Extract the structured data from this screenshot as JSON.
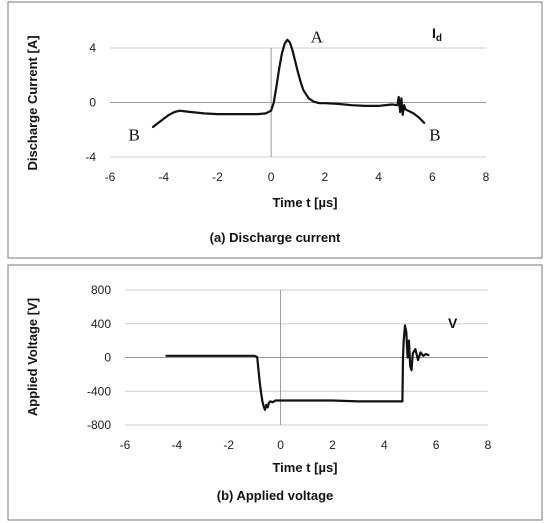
{
  "chart_data": [
    {
      "type": "line",
      "caption": "(a) Discharge current",
      "xlabel": "Time t [µs]",
      "ylabel": "Discharge Current [A]",
      "xlim": [
        -6,
        8
      ],
      "ylim": [
        -4,
        4
      ],
      "xticks": [
        "-6",
        "-4",
        "-2",
        "0",
        "2",
        "4",
        "6",
        "8"
      ],
      "yticks": [
        "4",
        "0",
        "-4"
      ],
      "ytick_values": [
        4,
        0,
        -4
      ],
      "grid": true,
      "series_label": "Id",
      "annotations": [
        {
          "text": "A",
          "x": 1.7,
          "y": 4.4
        },
        {
          "text": "B",
          "x": -5.1,
          "y": -2.8
        },
        {
          "text": "B",
          "x": 6.1,
          "y": -2.8
        }
      ],
      "series": [
        {
          "x": [
            -4.4,
            -4.2,
            -4.0,
            -3.8,
            -3.6,
            -3.4,
            -3.2,
            -3.0,
            -2.5,
            -2.0,
            -1.5,
            -1.0,
            -0.5,
            -0.2,
            0.0,
            0.1,
            0.2,
            0.3,
            0.4,
            0.5,
            0.6,
            0.7,
            0.8,
            0.9,
            1.0,
            1.1,
            1.2,
            1.4,
            1.6,
            1.8,
            2.0,
            2.5,
            3.0,
            3.5,
            4.0,
            4.5,
            4.7,
            4.75,
            4.8,
            4.85,
            4.9,
            4.95,
            5.0,
            5.1,
            5.3,
            5.5,
            5.7
          ],
          "values": [
            -1.8,
            -1.5,
            -1.2,
            -0.9,
            -0.7,
            -0.6,
            -0.65,
            -0.7,
            -0.8,
            -0.85,
            -0.85,
            -0.85,
            -0.85,
            -0.8,
            -0.6,
            0.0,
            1.2,
            2.5,
            3.6,
            4.3,
            4.6,
            4.4,
            3.8,
            3.0,
            2.2,
            1.5,
            0.9,
            0.3,
            0.05,
            -0.05,
            -0.05,
            -0.1,
            -0.2,
            -0.25,
            -0.25,
            -0.15,
            -0.2,
            0.4,
            -0.7,
            0.3,
            -0.9,
            -0.2,
            -0.5,
            -0.6,
            -0.8,
            -1.1,
            -1.5
          ]
        }
      ]
    },
    {
      "type": "line",
      "caption": "(b) Applied voltage",
      "xlabel": "Time t [µs]",
      "ylabel": "Applied Voltage [V]",
      "xlim": [
        -6,
        8
      ],
      "ylim": [
        -800,
        800
      ],
      "xticks": [
        "-6",
        "-4",
        "-2",
        "0",
        "2",
        "4",
        "6",
        "8"
      ],
      "yticks": [
        "800",
        "400",
        "0",
        "-400",
        "-800"
      ],
      "ytick_values": [
        800,
        400,
        0,
        -400,
        -800
      ],
      "grid": true,
      "series_label": "V",
      "series": [
        {
          "x": [
            -4.4,
            -3.0,
            -2.0,
            -1.0,
            -0.9,
            -0.85,
            -0.8,
            -0.75,
            -0.7,
            -0.65,
            -0.6,
            -0.55,
            -0.5,
            -0.45,
            -0.4,
            -0.3,
            -0.2,
            0.0,
            1.0,
            2.0,
            3.0,
            4.0,
            4.7,
            4.72,
            4.75,
            4.8,
            4.85,
            4.9,
            4.95,
            5.0,
            5.05,
            5.1,
            5.2,
            5.3,
            5.4,
            5.5,
            5.6,
            5.7
          ],
          "values": [
            20,
            20,
            20,
            20,
            5,
            -150,
            -300,
            -420,
            -520,
            -580,
            -620,
            -560,
            -590,
            -540,
            -520,
            -530,
            -510,
            -510,
            -510,
            -510,
            -520,
            -520,
            -520,
            0,
            200,
            380,
            300,
            0,
            200,
            -100,
            -150,
            50,
            100,
            -30,
            60,
            20,
            40,
            30
          ]
        }
      ]
    }
  ]
}
